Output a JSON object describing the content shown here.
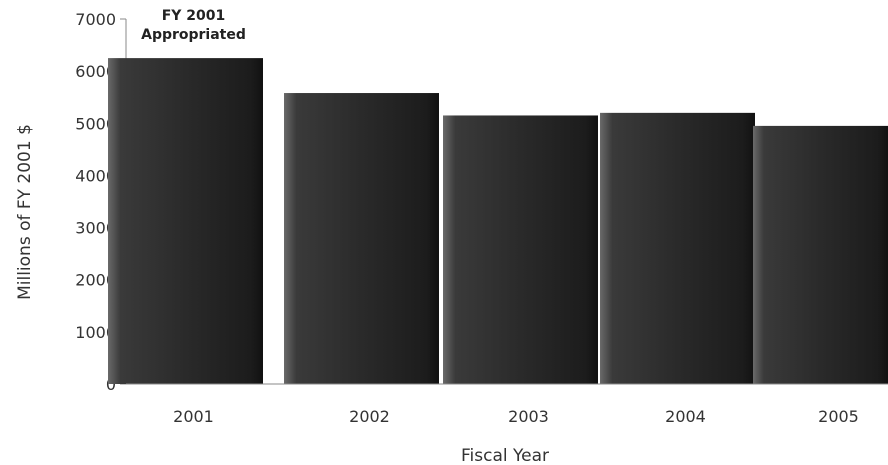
{
  "chart_data": {
    "type": "bar",
    "categories": [
      "2001",
      "2002",
      "2003",
      "2004",
      "2005"
    ],
    "values": [
      6250,
      5580,
      5150,
      5200,
      4950
    ],
    "xlabel": "Fiscal Year",
    "ylabel": "Millions of FY 2001 $",
    "ylim": [
      0,
      7000
    ],
    "yticks": [
      0,
      1000,
      2000,
      3000,
      4000,
      5000,
      6000,
      7000
    ],
    "annotation": {
      "lines": [
        "FY 2001",
        "Appropriated"
      ],
      "category": "2001"
    },
    "grid": false,
    "legend": "none",
    "bar_color": "#2b2b2b"
  }
}
